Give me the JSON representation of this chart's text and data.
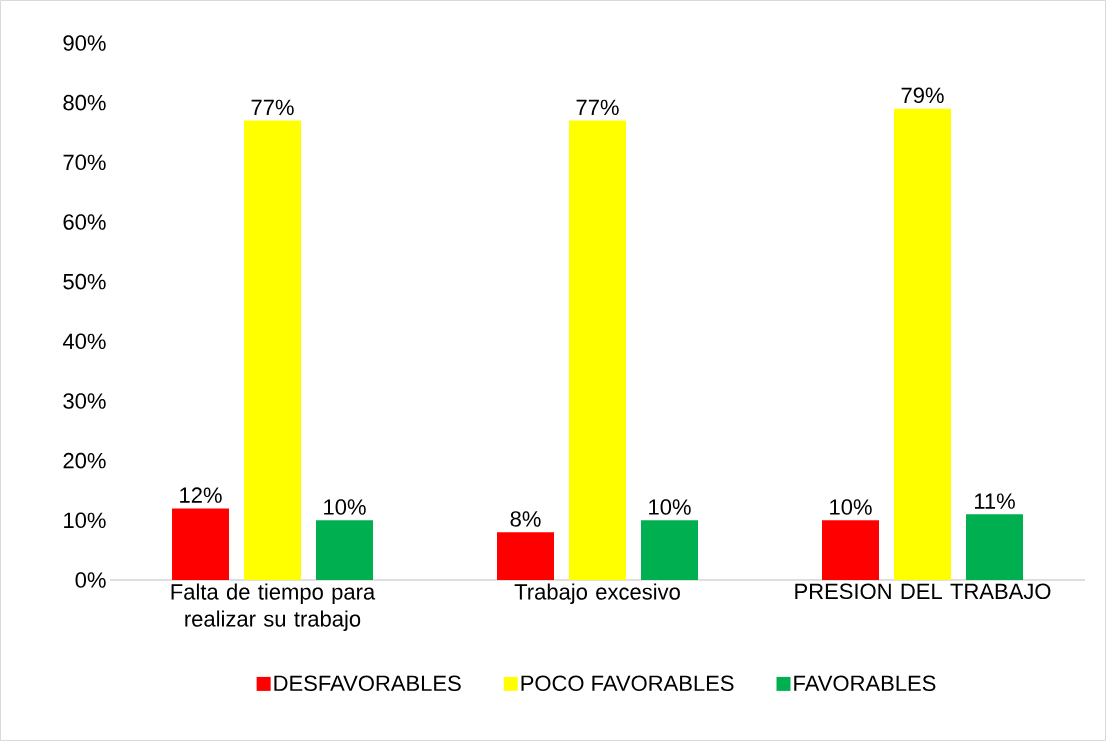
{
  "chart_data": {
    "type": "bar",
    "categories": [
      "Falta de tiempo para realizar su trabajo",
      "Trabajo excesivo",
      "PRESION DEL TRABAJO"
    ],
    "series": [
      {
        "name": "DESFAVORABLES",
        "color": "#ff0000",
        "values": [
          12,
          8,
          10
        ],
        "value_labels": [
          "12%",
          "8%",
          "10%"
        ]
      },
      {
        "name": "POCO FAVORABLES",
        "color": "#ffff00",
        "values": [
          77,
          77,
          79
        ],
        "value_labels": [
          "77%",
          "77%",
          "79%"
        ]
      },
      {
        "name": "FAVORABLES",
        "color": "#00b050",
        "values": [
          10,
          10,
          11
        ],
        "value_labels": [
          "10%",
          "10%",
          "11%"
        ]
      }
    ],
    "ylim": [
      0,
      90
    ],
    "yticks": [
      {
        "value": 0,
        "label": "0%"
      },
      {
        "value": 10,
        "label": "10%"
      },
      {
        "value": 20,
        "label": "20%"
      },
      {
        "value": 30,
        "label": "30%"
      },
      {
        "value": 40,
        "label": "40%"
      },
      {
        "value": 50,
        "label": "50%"
      },
      {
        "value": 60,
        "label": "60%"
      },
      {
        "value": 70,
        "label": "70%"
      },
      {
        "value": 80,
        "label": "80%"
      },
      {
        "value": 90,
        "label": "90%"
      }
    ],
    "grid": false,
    "legend": "bottom"
  }
}
